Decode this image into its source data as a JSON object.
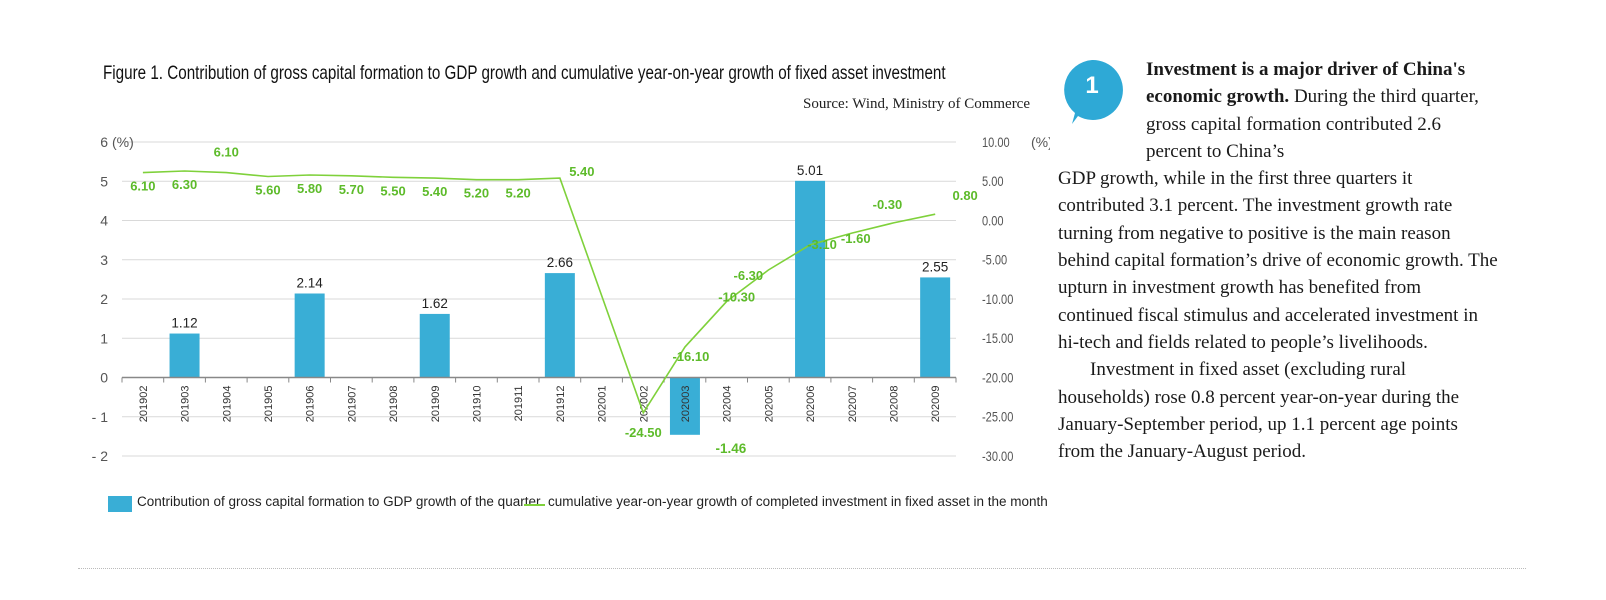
{
  "figure": {
    "title": "Figure 1. Contribution of gross capital formation to GDP growth and cumulative year-on-year growth of fixed asset investment",
    "source": "Source: Wind, Ministry of Commerce"
  },
  "chart_data": {
    "type": "bar+line",
    "categories": [
      "201902",
      "201903",
      "201904",
      "201905",
      "201906",
      "201907",
      "201908",
      "201909",
      "201910",
      "201911",
      "201912",
      "202001",
      "202002",
      "202003",
      "202004",
      "202005",
      "202006",
      "202007",
      "202008",
      "202009"
    ],
    "series": [
      {
        "name": "Contribution of gross capital formation to GDP growth of the quarter",
        "type": "bar",
        "axis": "left",
        "values": [
          null,
          1.12,
          null,
          null,
          2.14,
          null,
          null,
          1.62,
          null,
          null,
          2.66,
          null,
          null,
          -1.46,
          null,
          null,
          5.01,
          null,
          null,
          2.55
        ],
        "color": "#39aed6"
      },
      {
        "name": "cumulative year-on-year growth of completed investment in fixed asset in the month",
        "type": "line",
        "axis": "right",
        "values": [
          6.1,
          6.3,
          6.1,
          5.6,
          5.8,
          5.7,
          5.5,
          5.4,
          5.2,
          5.2,
          5.4,
          null,
          -24.5,
          -16.1,
          -10.3,
          -6.3,
          -3.1,
          -1.6,
          -0.3,
          0.8
        ],
        "color": "#7fd13b"
      }
    ],
    "left_axis": {
      "unit": "(%)",
      "range": [
        -2,
        6
      ],
      "ticks": [
        6,
        5,
        4,
        3,
        2,
        1,
        0,
        -1,
        -2
      ],
      "tick_labels": [
        "6",
        "5",
        "4",
        "3",
        "2",
        "1",
        "0",
        "- 1",
        "- 2"
      ]
    },
    "right_axis": {
      "unit": "(%)",
      "range": [
        -30,
        10
      ],
      "ticks": [
        10,
        5,
        0,
        -5,
        -10,
        -15,
        -20,
        -25,
        -30
      ],
      "tick_labels": [
        "10.00",
        "5.00",
        "0.00",
        "-5.00",
        "-10.00",
        "-15.00",
        "-20.00",
        "-25.00",
        "-30.00"
      ]
    },
    "bar_labels": [
      "1.12",
      "2.14",
      "1.62",
      "2.66",
      "-1.46",
      "5.01",
      "2.55"
    ],
    "line_labels": [
      "6.10",
      "6.30",
      "6.10",
      "5.60",
      "5.80",
      "5.70",
      "5.50",
      "5.40",
      "5.20",
      "5.20",
      "5.40",
      "-24.50",
      "-16.10",
      "-10.30",
      "-6.30",
      "-3.10",
      "-1.60",
      "-0.30",
      "0.80"
    ],
    "grid": true,
    "legend_position": "bottom"
  },
  "legend": {
    "bar_label": "Contribution of gross capital formation to GDP growth of the quarter",
    "line_label": "cumulative year-on-year growth of completed investment in fixed asset in the month"
  },
  "badge": {
    "number": "1",
    "color": "#2ea9d6"
  },
  "article": {
    "lead": "Investment is a major driver of China's economic growth.",
    "p1_part1": " During the third quarter, gross capital formation contributed 2.6 percent to China’s",
    "p1_part2": "GDP growth, while in the first three quarters it contributed 3.1 percent. The investment growth rate turning from negative to positive is the main reason behind capital formation’s drive of economic growth. The upturn in investment growth has benefited from continued fiscal stimulus and accelerated investment in hi-tech and fields related to people’s livelihoods.",
    "p2": "Investment in fixed asset (excluding rural households) rose 0.8 percent year-on-year during the January-September period, up 1.1 percent age points from the January-August period."
  }
}
